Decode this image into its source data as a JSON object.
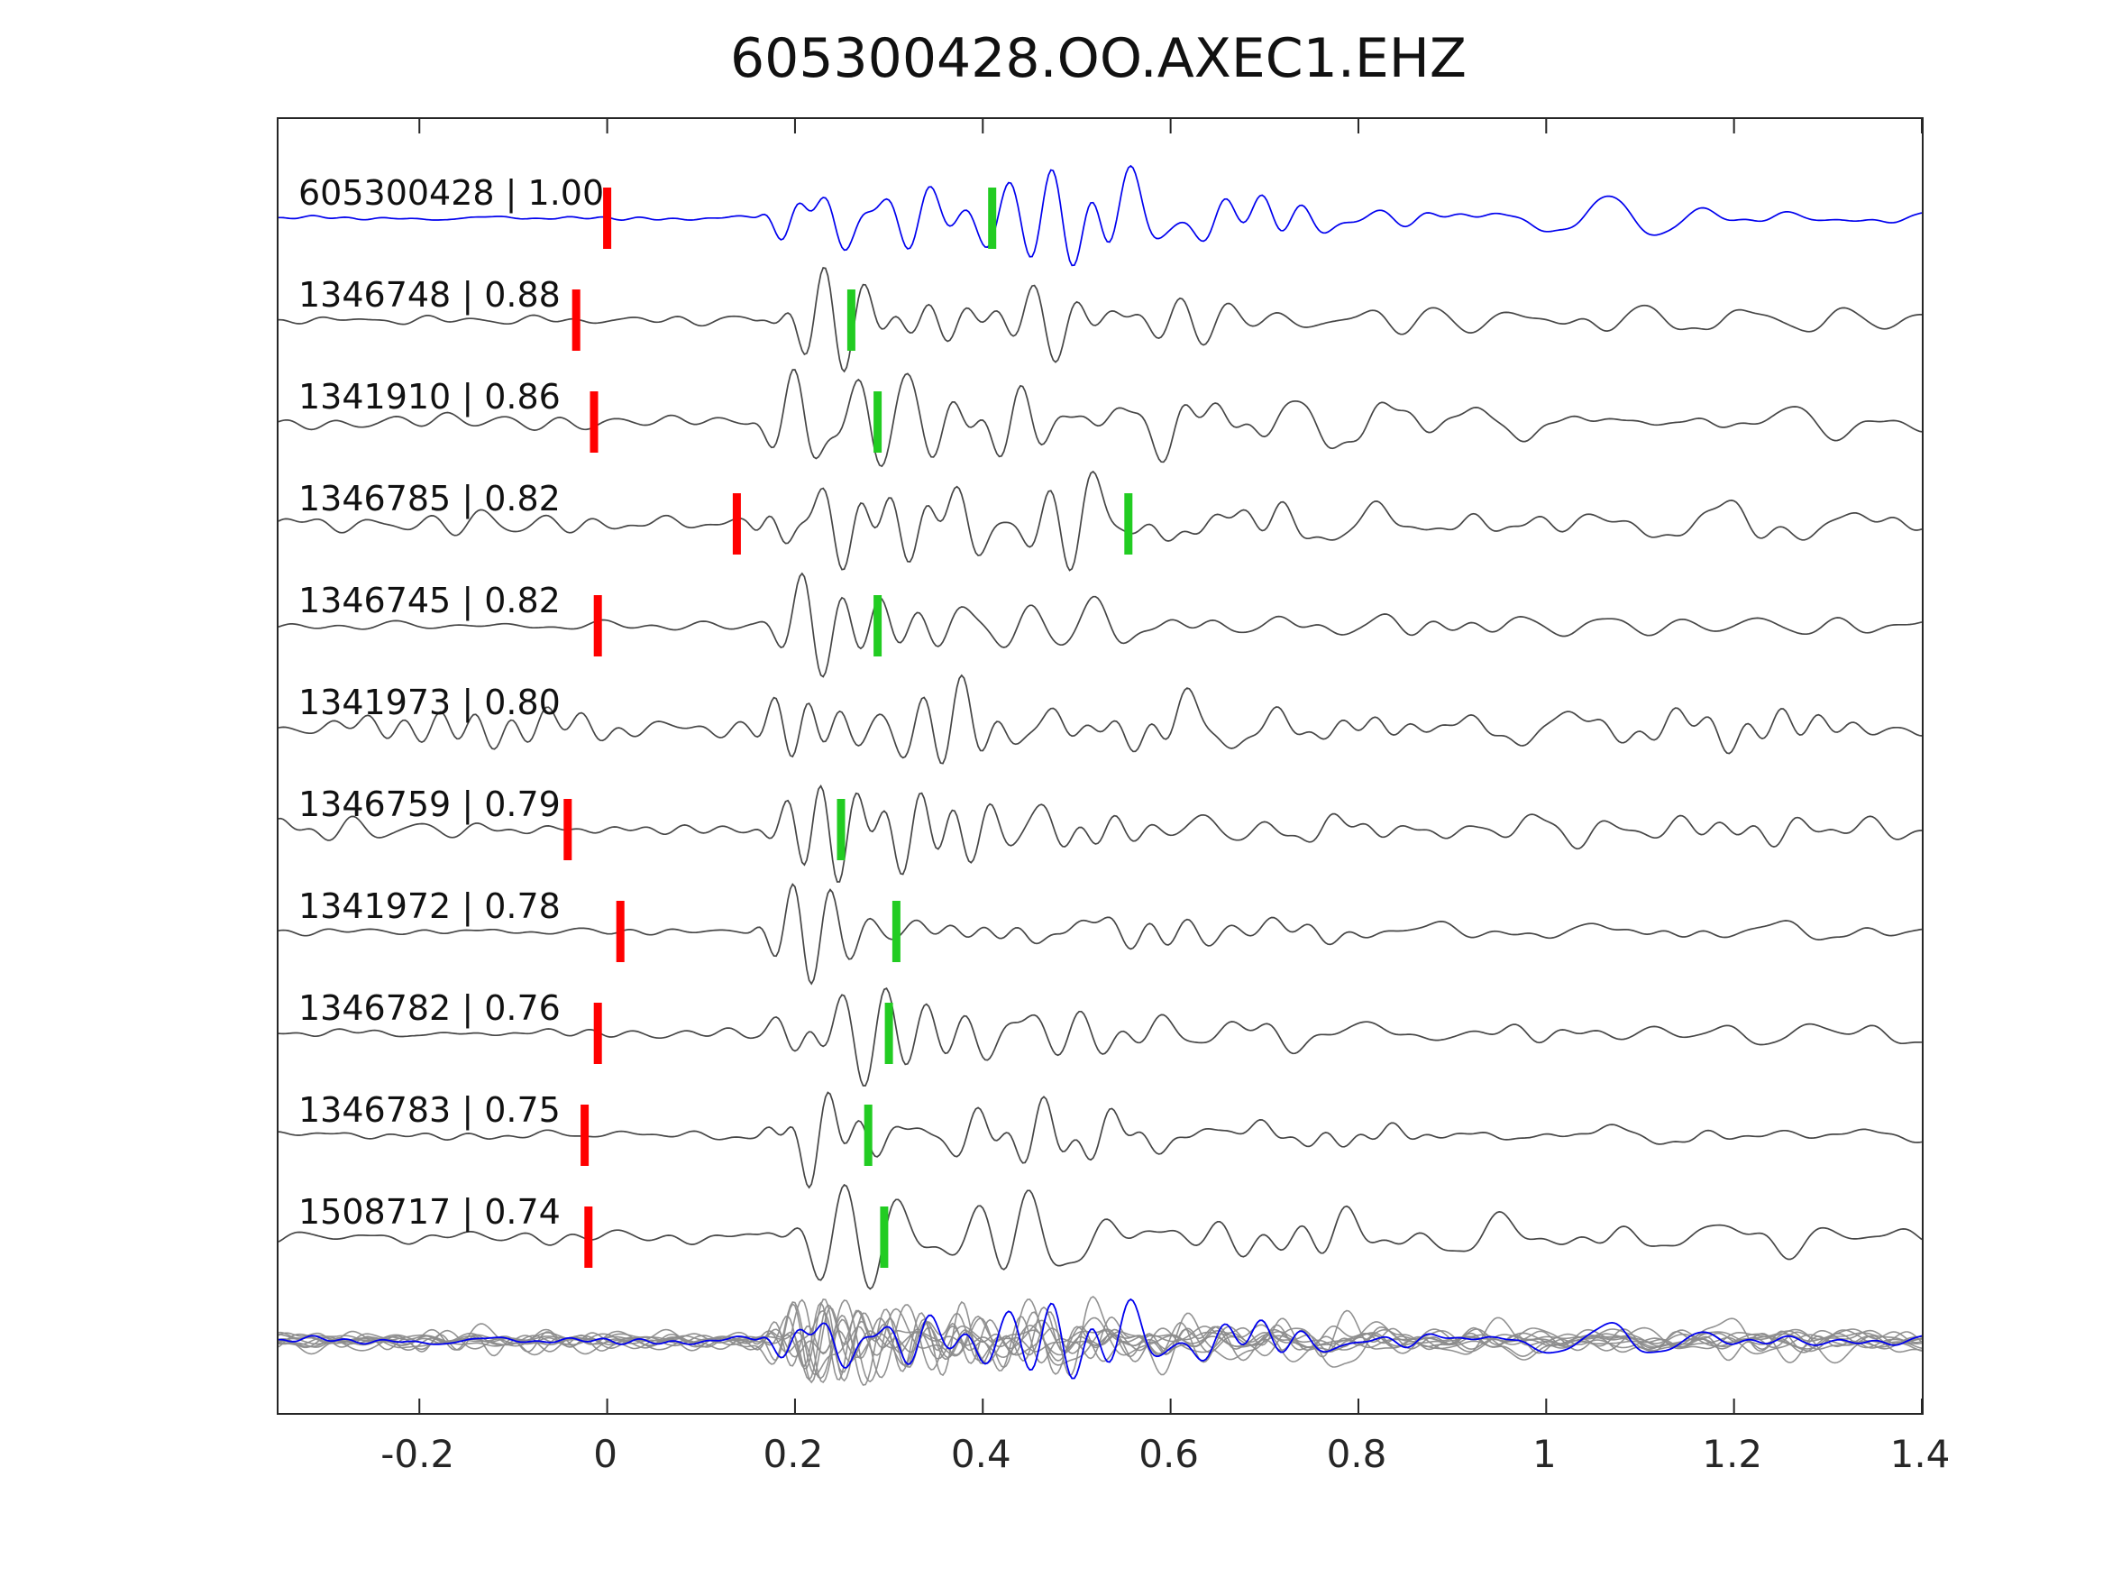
{
  "title": "605300428.OO.AXEC1.EHZ",
  "chart_data": {
    "type": "line",
    "title": "605300428.OO.AXEC1.EHZ",
    "description": "Stacked seismogram waveforms: template event (blue) vs correlated detections (gray), with red reference picks and green cross-correlation picks; bottom row shows all traces overlaid (gray) with the template in blue.",
    "xlabel": "",
    "ylabel": "",
    "xlim": [
      -0.35,
      1.4
    ],
    "x_ticks": [
      -0.2,
      0,
      0.2,
      0.4,
      0.6,
      0.8,
      1,
      1.2,
      1.4
    ],
    "x_tick_labels": [
      "-0.2",
      "0",
      "0.2",
      "0.4",
      "0.6",
      "0.8",
      "1",
      "1.2",
      "1.4"
    ],
    "grid": false,
    "legend": null,
    "template_color": "#0000EE",
    "trace_color": "#464646",
    "pick_colors": {
      "red": "#FF0000",
      "green": "#22CC22"
    },
    "overlay": {
      "gray_color": "#8C8C8C",
      "blue_color": "#0000EE"
    },
    "waveform_style": {
      "onset_time": 0.15,
      "burst_freq_hz": [
        13,
        30
      ],
      "coda_freq_hz": [
        5,
        14
      ]
    },
    "traces": [
      {
        "id": "605300428",
        "corr": "1.00",
        "label": "605300428 | 1.00",
        "is_template": true,
        "red_pick": 0.0,
        "green_pick": 0.41,
        "noise": 0.05,
        "seed": 1
      },
      {
        "id": "1346748",
        "corr": "0.88",
        "label": "1346748 | 0.88",
        "is_template": false,
        "red_pick": -0.033,
        "green_pick": 0.26,
        "noise": 0.22,
        "seed": 2
      },
      {
        "id": "1341910",
        "corr": "0.86",
        "label": "1341910 | 0.86",
        "is_template": false,
        "red_pick": -0.014,
        "green_pick": 0.288,
        "noise": 0.18,
        "seed": 3
      },
      {
        "id": "1346785",
        "corr": "0.82",
        "label": "1346785 | 0.82",
        "is_template": false,
        "red_pick": 0.138,
        "green_pick": 0.555,
        "noise": 0.22,
        "seed": 4
      },
      {
        "id": "1346745",
        "corr": "0.82",
        "label": "1346745 | 0.82",
        "is_template": false,
        "red_pick": -0.01,
        "green_pick": 0.288,
        "noise": 0.2,
        "seed": 5
      },
      {
        "id": "1341973",
        "corr": "0.80",
        "label": "1341973 | 0.80",
        "is_template": false,
        "red_pick": null,
        "green_pick": null,
        "noise": 0.45,
        "seed": 6
      },
      {
        "id": "1346759",
        "corr": "0.79",
        "label": "1346759 | 0.79",
        "is_template": false,
        "red_pick": -0.042,
        "green_pick": 0.249,
        "noise": 0.45,
        "seed": 7
      },
      {
        "id": "1341972",
        "corr": "0.78",
        "label": "1341972 | 0.78",
        "is_template": false,
        "red_pick": 0.014,
        "green_pick": 0.308,
        "noise": 0.15,
        "seed": 8
      },
      {
        "id": "1346782",
        "corr": "0.76",
        "label": "1346782 | 0.76",
        "is_template": false,
        "red_pick": -0.01,
        "green_pick": 0.3,
        "noise": 0.18,
        "seed": 9
      },
      {
        "id": "1346783",
        "corr": "0.75",
        "label": "1346783 | 0.75",
        "is_template": false,
        "red_pick": -0.024,
        "green_pick": 0.278,
        "noise": 0.22,
        "seed": 10
      },
      {
        "id": "1508717",
        "corr": "0.74",
        "label": "1508717 | 0.74",
        "is_template": false,
        "red_pick": -0.02,
        "green_pick": 0.295,
        "noise": 0.18,
        "seed": 11
      }
    ]
  }
}
